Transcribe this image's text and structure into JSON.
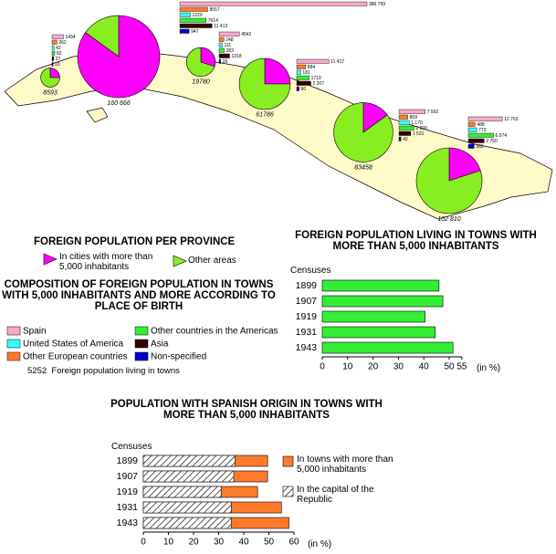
{
  "map": {
    "categories": [
      "Spain",
      "Other European countries",
      "United States of America",
      "Other countries in the Americas",
      "Asia",
      "Non-specified"
    ],
    "colors": [
      "#f7a8cc",
      "#ff7a2a",
      "#33ffff",
      "#33ee33",
      "#330000",
      "#0000cc"
    ],
    "pie_colors": [
      "#ff00ff",
      "#88ee22"
    ],
    "provinces": [
      {
        "total": 8593,
        "total_label": "8593",
        "cities_share": 25,
        "bars": [
          1434,
          262,
          42,
          82,
          27,
          10
        ],
        "bar_labels": [
          "1434",
          "262",
          "42",
          "82",
          "27",
          "10"
        ]
      },
      {
        "total": 160666,
        "total_label": "160 666",
        "cities_share": 85,
        "bars": [
          386799,
          8557,
          1220,
          7614,
          11413,
          947
        ],
        "bar_labels": [
          "386 799",
          "8557",
          "1220",
          "7614",
          "11 413",
          "947"
        ]
      },
      {
        "total": 19780,
        "total_label": "19780",
        "cities_share": 30,
        "bars": [
          4542,
          248,
          111,
          283,
          1218,
          26
        ],
        "bar_labels": [
          "4542",
          "248",
          "111",
          "283",
          "1218",
          "26"
        ]
      },
      {
        "total": 61786,
        "total_label": "61786",
        "cities_share": 25,
        "bars": [
          11417,
          884,
          181,
          1710,
          2207,
          60
        ],
        "bar_labels": [
          "11 417",
          "884",
          "181",
          "1710",
          "2 207",
          "60"
        ]
      },
      {
        "total": 83458,
        "total_label": "83458",
        "cities_share": 15,
        "bars": [
          7592,
          859,
          1170,
          2500,
          1531,
          42
        ],
        "bar_labels": [
          "7 592",
          "859",
          "1 170",
          "2 500",
          "1 531",
          "42"
        ]
      },
      {
        "total": 102810,
        "total_label": "102 810",
        "cities_share": 20,
        "bars": [
          12763,
          488,
          772,
          6974,
          2750,
          365
        ],
        "bar_labels": [
          "12 763",
          "488",
          "772",
          "6 974",
          "2 750",
          "365"
        ]
      }
    ]
  },
  "legend_province": {
    "title": "FOREIGN POPULATION PER PROVINCE",
    "items": [
      "In cities with more than 5,000 inhabitants",
      "Other areas"
    ]
  },
  "legend_composition": {
    "title": "COMPOSITION OF FOREIGN POPULATION IN TOWNS WITH 5,000 INHABITANTS AND MORE ACCORDING TO PLACE OF BIRTH",
    "example": "5252  Foreign population living in towns"
  },
  "chart_data": [
    {
      "type": "bar",
      "title": "FOREIGN POPULATION LIVING IN TOWNS WITH MORE THAN 5,000 INHABITANTS",
      "y_label": "Censuses",
      "x_label": "(in %)",
      "categories": [
        "1899",
        "1907",
        "1919",
        "1931",
        "1943"
      ],
      "values": [
        46,
        47.5,
        40.5,
        44.5,
        51.5
      ],
      "color": "#33ee33",
      "xlim": [
        0,
        55
      ],
      "xticks": [
        0,
        10,
        20,
        30,
        40,
        50,
        55
      ]
    },
    {
      "type": "bar",
      "title": "POPULATION WITH SPANISH ORIGIN IN TOWNS WITH MORE THAN 5,000 INHABITANTS",
      "y_label": "Censuses",
      "x_label": "(in %)",
      "categories": [
        "1899",
        "1907",
        "1919",
        "1931",
        "1943"
      ],
      "series": [
        {
          "name": "In towns with more than 5,000 inhabitants",
          "color": "#ff7a2a",
          "values": [
            49.5,
            49.5,
            45.5,
            55,
            58
          ]
        },
        {
          "name": "In the capital of the Republic",
          "color": "#ff7a2a",
          "pattern": "hatch",
          "values": [
            36.5,
            36,
            31,
            35,
            35
          ]
        }
      ],
      "xlim": [
        0,
        60
      ],
      "xticks": [
        0,
        10,
        20,
        30,
        40,
        50,
        60
      ]
    }
  ]
}
